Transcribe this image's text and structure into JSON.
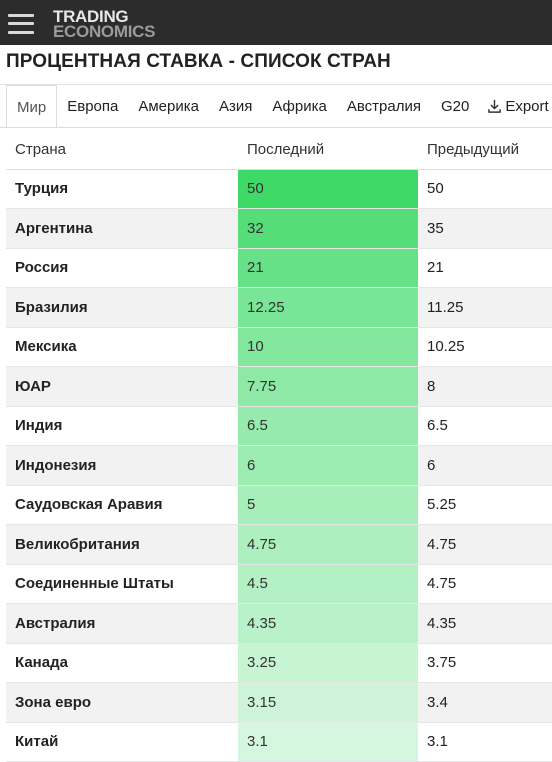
{
  "header": {
    "logo_line1": "TRADING",
    "logo_line2": "ECONOMICS"
  },
  "page": {
    "title": "ПРОЦЕНТНАЯ СТАВКА - СПИСОК СТРАН"
  },
  "tabs": [
    {
      "label": "Мир",
      "active": true
    },
    {
      "label": "Европа"
    },
    {
      "label": "Америка"
    },
    {
      "label": "Азия"
    },
    {
      "label": "Африка"
    },
    {
      "label": "Австралия"
    },
    {
      "label": "G20"
    },
    {
      "label": "Export",
      "icon": "download-icon"
    }
  ],
  "table": {
    "columns": [
      "Страна",
      "Последний",
      "Предыдущий"
    ],
    "rows": [
      {
        "country": "Турция",
        "last": "50",
        "previous": "50"
      },
      {
        "country": "Аргентина",
        "last": "32",
        "previous": "35"
      },
      {
        "country": "Россия",
        "last": "21",
        "previous": "21"
      },
      {
        "country": "Бразилия",
        "last": "12.25",
        "previous": "11.25"
      },
      {
        "country": "Мексика",
        "last": "10",
        "previous": "10.25"
      },
      {
        "country": "ЮАР",
        "last": "7.75",
        "previous": "8"
      },
      {
        "country": "Индия",
        "last": "6.5",
        "previous": "6.5"
      },
      {
        "country": "Индонезия",
        "last": "6",
        "previous": "6"
      },
      {
        "country": "Саудовская Аравия",
        "last": "5",
        "previous": "5.25"
      },
      {
        "country": "Великобритания",
        "last": "4.75",
        "previous": "4.75"
      },
      {
        "country": "Соединенные Штаты",
        "last": "4.5",
        "previous": "4.75"
      },
      {
        "country": "Австралия",
        "last": "4.35",
        "previous": "4.35"
      },
      {
        "country": "Канада",
        "last": "3.25",
        "previous": "3.75"
      },
      {
        "country": "Зона евро",
        "last": "3.15",
        "previous": "3.4"
      },
      {
        "country": "Китай",
        "last": "3.1",
        "previous": "3.1"
      }
    ]
  },
  "colors": {
    "topbar": "#2c2c2c",
    "heat_max": "#3fd968",
    "heat_min": "#d6f7df"
  }
}
